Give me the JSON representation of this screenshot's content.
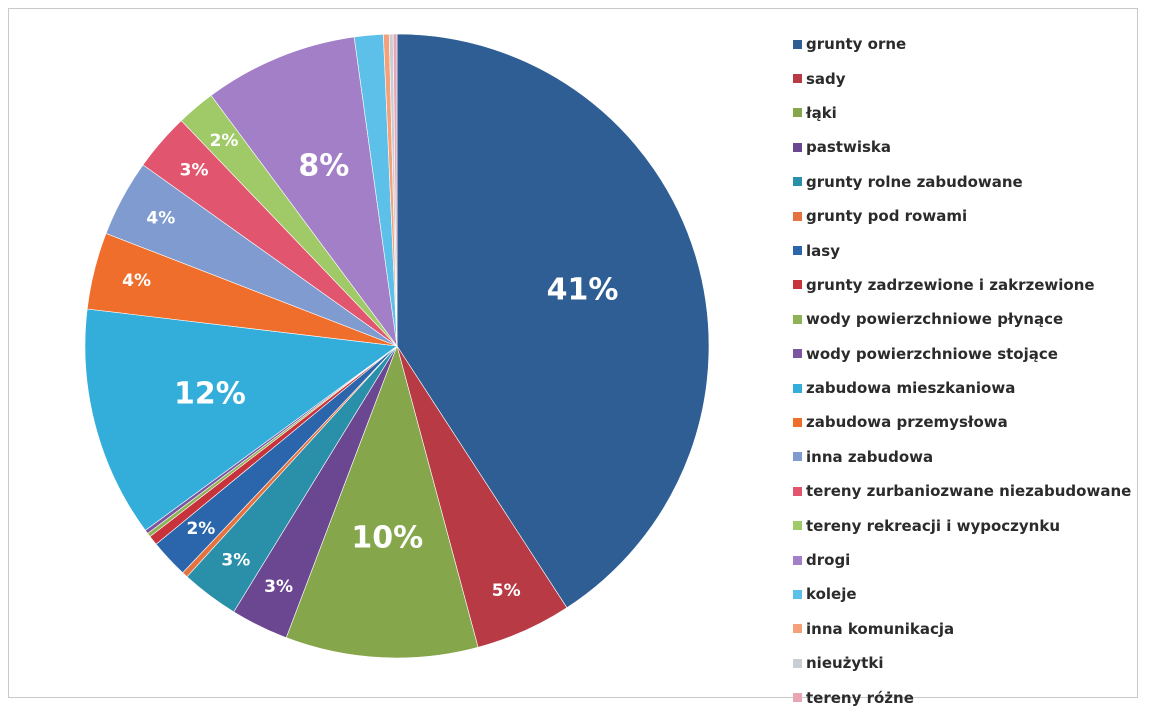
{
  "chart_data": {
    "type": "pie",
    "title": "",
    "legend_position": "right",
    "start_angle_deg": 0,
    "direction": "clockwise",
    "slices": [
      {
        "name": "grunty orne",
        "value": 41,
        "label": "41%",
        "color": "#2e5e94"
      },
      {
        "name": "sady",
        "value": 5,
        "label": "5%",
        "color": "#b83a45"
      },
      {
        "name": "łąki",
        "value": 10,
        "label": "10%",
        "color": "#86a64c"
      },
      {
        "name": "pastwiska",
        "value": 3,
        "label": "3%",
        "color": "#6c4791"
      },
      {
        "name": "grunty rolne zabudowane",
        "value": 3,
        "label": "3%",
        "color": "#2a8fa8"
      },
      {
        "name": "grunty pod rowami",
        "value": 0.3,
        "label": "",
        "color": "#e5733f"
      },
      {
        "name": "lasy",
        "value": 2,
        "label": "2%",
        "color": "#2b66ad"
      },
      {
        "name": "grunty zadrzewione i zakrzewione",
        "value": 0.5,
        "label": "",
        "color": "#c8333b"
      },
      {
        "name": "wody powierzchniowe płynące",
        "value": 0.2,
        "label": "",
        "color": "#8fb257"
      },
      {
        "name": "wody powierzchniowe stojące",
        "value": 0.2,
        "label": "",
        "color": "#7b55a0"
      },
      {
        "name": "zabudowa mieszkaniowa",
        "value": 12,
        "label": "12%",
        "color": "#33aedb"
      },
      {
        "name": "zabudowa przemysłowa",
        "value": 4,
        "label": "4%",
        "color": "#f06e2b"
      },
      {
        "name": "inna zabudowa",
        "value": 4,
        "label": "4%",
        "color": "#7f9bd0"
      },
      {
        "name": "tereny zurbaniozwane niezabudowane",
        "value": 3,
        "label": "3%",
        "color": "#e2556e"
      },
      {
        "name": "tereny rekreacji i wypoczynku",
        "value": 2,
        "label": "2%",
        "color": "#9fca67"
      },
      {
        "name": "drogi",
        "value": 8,
        "label": "8%",
        "color": "#a27fc6"
      },
      {
        "name": "koleje",
        "value": 1.5,
        "label": "",
        "color": "#5cc0e8"
      },
      {
        "name": "inna komunikacja",
        "value": 0.3,
        "label": "",
        "color": "#f4a07a"
      },
      {
        "name": "nieużytki",
        "value": 0.2,
        "label": "",
        "color": "#c9cdd4"
      },
      {
        "name": "tereny różne",
        "value": 0.2,
        "label": "",
        "color": "#eaa5b5"
      }
    ]
  }
}
